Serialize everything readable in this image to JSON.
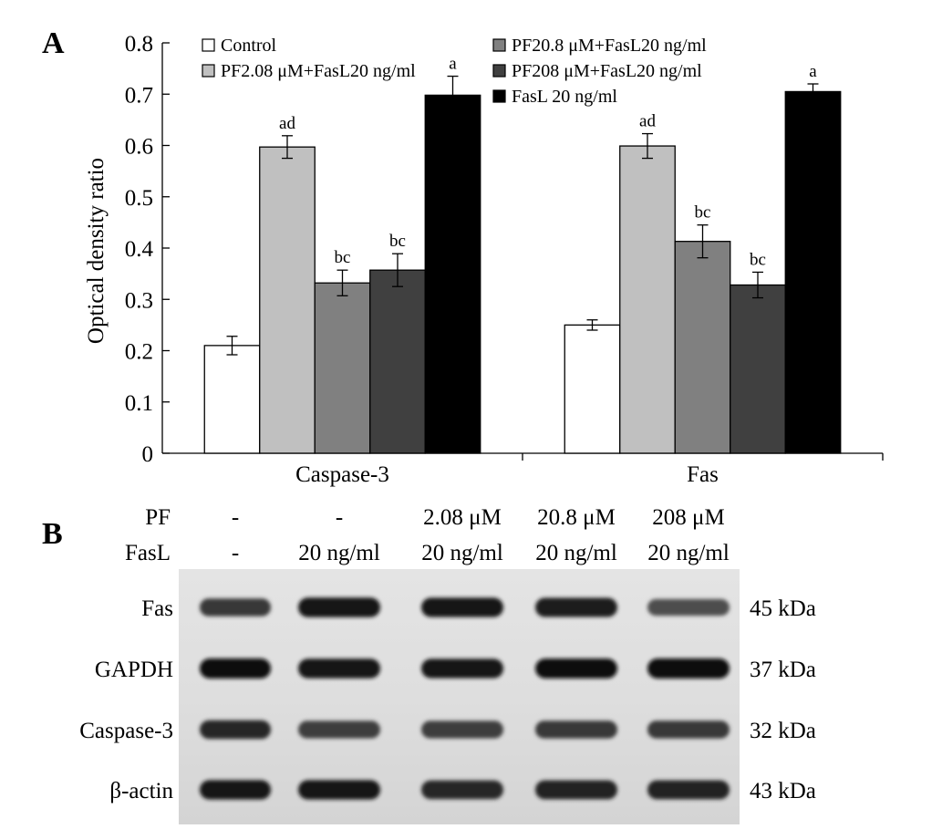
{
  "panels": {
    "a": "A",
    "b": "B"
  },
  "chart_data": {
    "type": "bar",
    "categories": [
      "Caspase-3",
      "Fas"
    ],
    "ylabel": "Optical density ratio",
    "xlabel": "",
    "ylim": [
      0,
      0.8
    ],
    "yticks": [
      "0",
      "0.1",
      "0.2",
      "0.3",
      "0.4",
      "0.5",
      "0.6",
      "0.7",
      "0.8"
    ],
    "grid": false,
    "legend_position": "top",
    "series": [
      {
        "name": "Control",
        "color": "#ffffff",
        "values": [
          0.21,
          0.25
        ],
        "errors": [
          0.018,
          0.01
        ],
        "labels": [
          "",
          ""
        ]
      },
      {
        "name": "PF2.08 μM+FasL20 ng/ml",
        "color": "#c0c0c0",
        "values": [
          0.597,
          0.599
        ],
        "errors": [
          0.022,
          0.024
        ],
        "labels": [
          "ad",
          "ad"
        ]
      },
      {
        "name": "PF20.8 μM+FasL20 ng/ml",
        "color": "#808080",
        "values": [
          0.332,
          0.413
        ],
        "errors": [
          0.025,
          0.032
        ],
        "labels": [
          "bc",
          "bc"
        ]
      },
      {
        "name": "PF208 μM+FasL20 ng/ml",
        "color": "#404040",
        "values": [
          0.357,
          0.328
        ],
        "errors": [
          0.032,
          0.025
        ],
        "labels": [
          "bc",
          "bc"
        ]
      },
      {
        "name": "FasL 20 ng/ml",
        "color": "#000000",
        "values": [
          0.698,
          0.705
        ],
        "errors": [
          0.037,
          0.015
        ],
        "labels": [
          "a",
          "a"
        ]
      }
    ]
  },
  "blot": {
    "row_headers": [
      "PF",
      "FasL"
    ],
    "treatments": [
      {
        "pf": "-",
        "fasl": "-"
      },
      {
        "pf": "-",
        "fasl": "20 ng/ml"
      },
      {
        "pf": "2.08 μM",
        "fasl": "20 ng/ml"
      },
      {
        "pf": "20.8 μM",
        "fasl": "20 ng/ml"
      },
      {
        "pf": "208 μM",
        "fasl": "20 ng/ml"
      }
    ],
    "bands": [
      {
        "protein": "Fas",
        "size": "45 kDa",
        "intensities": [
          0.75,
          0.95,
          0.92,
          0.9,
          0.62
        ]
      },
      {
        "protein": "GAPDH",
        "size": "37 kDa",
        "intensities": [
          1.0,
          0.95,
          0.92,
          0.97,
          1.0
        ]
      },
      {
        "protein": "Caspase-3",
        "size": "32 kDa",
        "intensities": [
          0.85,
          0.72,
          0.72,
          0.75,
          0.74
        ]
      },
      {
        "protein": "β-actin",
        "size": "43 kDa",
        "intensities": [
          0.92,
          0.92,
          0.85,
          0.88,
          0.88
        ]
      }
    ]
  }
}
